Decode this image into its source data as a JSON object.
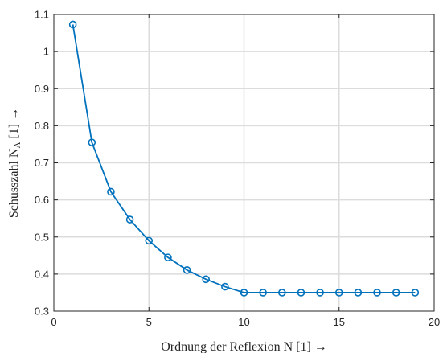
{
  "chart_data": {
    "type": "line",
    "title": "",
    "xlabel": "Ordnung der Reflexion N [1] →",
    "ylabel_main": "Schusszahl N",
    "ylabel_sub": "A",
    "ylabel_tail": " [1] →",
    "xlim": [
      0,
      20
    ],
    "ylim": [
      0.3,
      1.1
    ],
    "xticks": [
      0,
      5,
      10,
      15,
      20
    ],
    "yticks": [
      0.3,
      0.4,
      0.5,
      0.6,
      0.7,
      0.8,
      0.9,
      1.0,
      1.1
    ],
    "xtick_labels": [
      "0",
      "5",
      "10",
      "15",
      "20"
    ],
    "ytick_labels": [
      "0.3",
      "0.4",
      "0.5",
      "0.6",
      "0.7",
      "0.8",
      "0.9",
      "1",
      "1.1"
    ],
    "grid": true,
    "marker": "circle",
    "color": "#0072BD",
    "series": [
      {
        "x": [
          1,
          2,
          3,
          4,
          5,
          6,
          7,
          8,
          9,
          10,
          11,
          12,
          13,
          14,
          15,
          16,
          17,
          18,
          19
        ],
        "values": [
          1.073,
          0.755,
          0.622,
          0.547,
          0.49,
          0.445,
          0.411,
          0.386,
          0.366,
          0.35,
          0.35,
          0.35,
          0.35,
          0.35,
          0.35,
          0.35,
          0.35,
          0.35,
          0.35
        ]
      }
    ]
  }
}
